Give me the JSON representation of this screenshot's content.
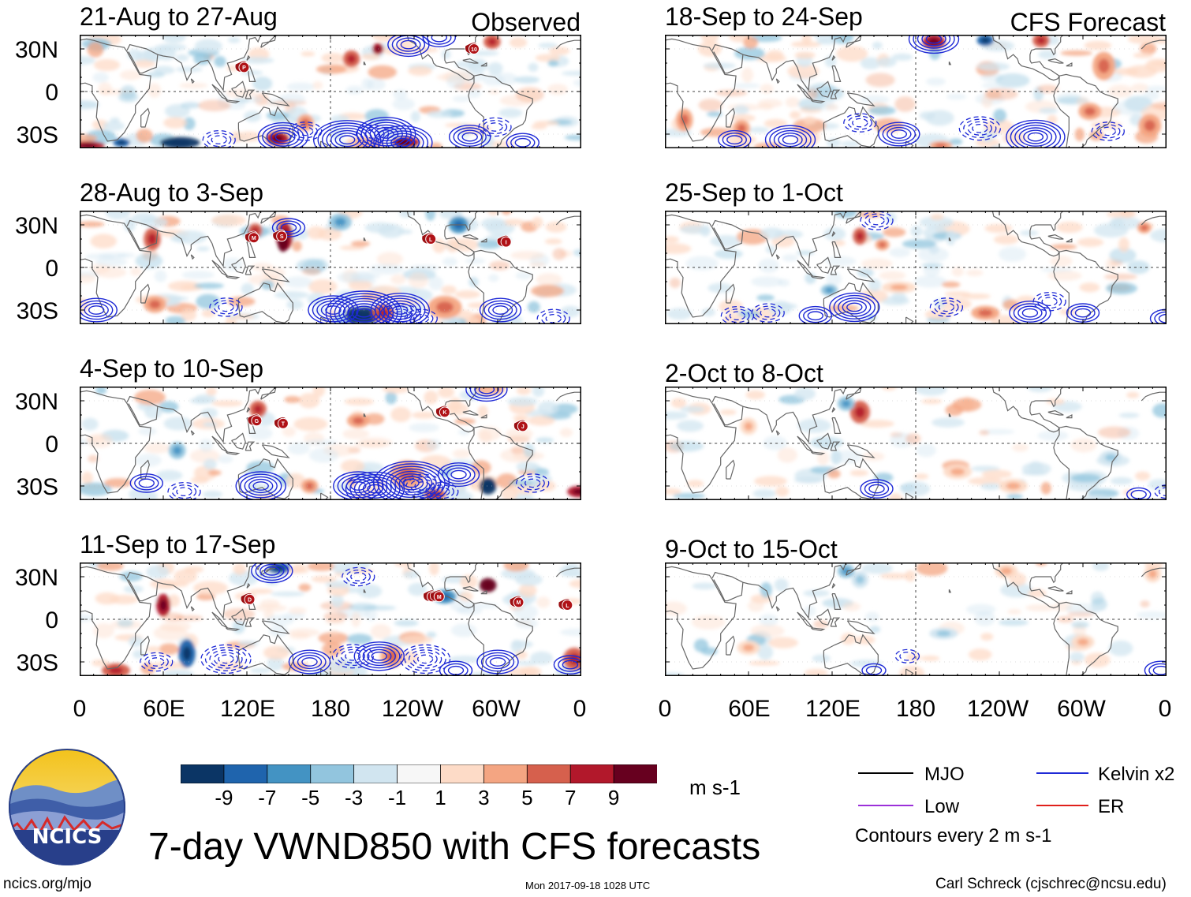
{
  "panels_left": {
    "header": "Observed",
    "periods": [
      "21-Aug to 27-Aug",
      "28-Aug to 3-Sep",
      "4-Sep to 10-Sep",
      "11-Sep to 17-Sep"
    ]
  },
  "panels_right": {
    "header": "CFS Forecast",
    "periods": [
      "18-Sep to 24-Sep",
      "25-Sep to 1-Oct",
      "2-Oct to 8-Oct",
      "9-Oct to 15-Oct"
    ]
  },
  "lat_labels": [
    "30N",
    "0",
    "30S"
  ],
  "lon_labels": [
    "0",
    "60E",
    "120E",
    "180",
    "120W",
    "60W",
    "0"
  ],
  "storm_markers": [
    {
      "panel": 0,
      "labels": [
        "P",
        "10"
      ]
    },
    {
      "panel": 1,
      "labels": [
        "M",
        "S",
        "L",
        "I"
      ]
    },
    {
      "panel": 2,
      "labels": [
        "G",
        "T",
        "K",
        "J"
      ]
    },
    {
      "panel": 3,
      "labels": [
        "D",
        "N",
        "M",
        "M",
        "L"
      ]
    }
  ],
  "colorbar": {
    "ticks": [
      "-9",
      "-7",
      "-5",
      "-3",
      "-1",
      "1",
      "3",
      "5",
      "7",
      "9"
    ],
    "colors": [
      "#0b3565",
      "#1f64ad",
      "#4393c3",
      "#92c5de",
      "#d1e5f0",
      "#f7f7f7",
      "#fddbc7",
      "#f4a582",
      "#d6604d",
      "#b2182b",
      "#67001f"
    ],
    "units": "m s-1"
  },
  "legend": {
    "items": [
      {
        "label": "MJO",
        "color": "#000000"
      },
      {
        "label": "Kelvin x2",
        "color": "#1f2ad6"
      },
      {
        "label": "Low",
        "color": "#9b30d9"
      },
      {
        "label": "ER",
        "color": "#e0201b"
      }
    ],
    "note": "Contours every 2 m s-1"
  },
  "logo": {
    "text": "NCICS"
  },
  "title": "7-day VWND850 with CFS forecasts",
  "footer": {
    "url": "ncics.org/mjo",
    "timestamp": "Mon 2017-09-18 1028 UTC",
    "author": "Carl Schreck (cjschrec@ncsu.edu)"
  }
}
